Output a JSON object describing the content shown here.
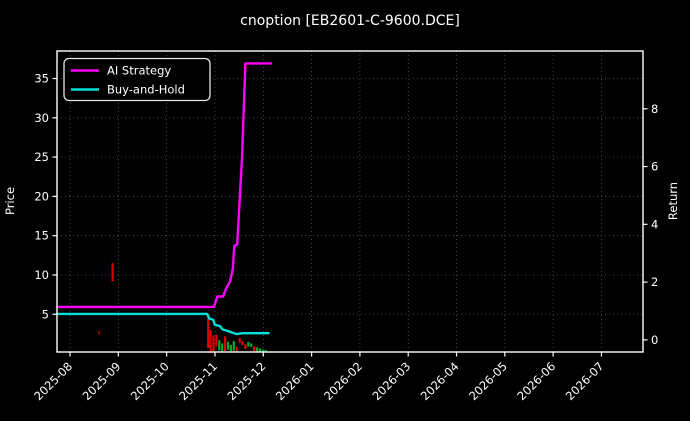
{
  "title": "cnoption [EB2601-C-9600.DCE]",
  "legend": {
    "items": [
      {
        "label": "AI Strategy",
        "color": "#ff00ff"
      },
      {
        "label": "Buy-and-Hold",
        "color": "#00e0da"
      }
    ]
  },
  "colors": {
    "background": "#000000",
    "foreground": "#ffffff",
    "grid": "#555555",
    "ai_strategy": "#ff00ff",
    "buy_and_hold": "#00e0da",
    "candle_up": "#00a82d",
    "candle_down": "#dd0000"
  },
  "chart_data": {
    "type": "line+candlestick",
    "title": "cnoption [EB2601-C-9600.DCE]",
    "x_axis": {
      "unit": "months_from_2025-08",
      "range": [
        -0.27,
        11.86
      ],
      "tick_labels": [
        "2025-08",
        "2025-09",
        "2025-10",
        "2025-11",
        "2025-12",
        "2026-01",
        "2026-02",
        "2026-03",
        "2026-04",
        "2026-05",
        "2026-06",
        "2026-07"
      ],
      "tick_positions": [
        0,
        1,
        2,
        3,
        4,
        5,
        6,
        7,
        8,
        9,
        10,
        11
      ],
      "tick_rotation_deg": 45
    },
    "left_axis": {
      "label": "Price",
      "ticks": [
        5,
        10,
        15,
        20,
        25,
        30,
        35
      ],
      "range": [
        0.2,
        38.5
      ]
    },
    "right_axis": {
      "label": "Return",
      "ticks": [
        0,
        2,
        4,
        6,
        8
      ],
      "range": [
        -0.42,
        10.0
      ]
    },
    "grid": true,
    "legend_position": "upper-left",
    "series": [
      {
        "name": "AI Strategy",
        "axis": "right",
        "color": "#ff00ff",
        "points": [
          [
            -0.27,
            1.14
          ],
          [
            2.98,
            1.14
          ],
          [
            3.05,
            1.5
          ],
          [
            3.17,
            1.5
          ],
          [
            3.23,
            1.78
          ],
          [
            3.31,
            2.0
          ],
          [
            3.37,
            2.45
          ],
          [
            3.4,
            3.25
          ],
          [
            3.46,
            3.3
          ],
          [
            3.56,
            6.3
          ],
          [
            3.63,
            9.57
          ],
          [
            4.16,
            9.57
          ]
        ]
      },
      {
        "name": "Buy-and-Hold",
        "axis": "right",
        "color": "#00e0da",
        "points": [
          [
            -0.27,
            0.9
          ],
          [
            2.84,
            0.9
          ],
          [
            2.88,
            0.74
          ],
          [
            2.96,
            0.7
          ],
          [
            3.0,
            0.52
          ],
          [
            3.1,
            0.48
          ],
          [
            3.16,
            0.36
          ],
          [
            3.24,
            0.32
          ],
          [
            3.33,
            0.27
          ],
          [
            3.45,
            0.2
          ],
          [
            3.58,
            0.23
          ],
          [
            4.11,
            0.23
          ]
        ]
      }
    ],
    "candles": [
      {
        "x": 0.6,
        "high": 2.9,
        "low": 2.4,
        "color": "#7a0000"
      },
      {
        "x": 0.88,
        "high": 11.5,
        "low": 9.2,
        "color": "#dd0000"
      },
      {
        "x": 2.86,
        "high": 4.5,
        "low": 0.7,
        "color": "#dd0000"
      },
      {
        "x": 2.91,
        "high": 3.0,
        "low": 0.1,
        "color": "#dd0000"
      },
      {
        "x": 2.97,
        "high": 2.3,
        "low": 0.1,
        "color": "#dd0000"
      },
      {
        "x": 3.03,
        "high": 2.4,
        "low": 0.9,
        "color": "#dd0000"
      },
      {
        "x": 3.09,
        "high": 1.7,
        "low": 0.4,
        "color": "#00a82d"
      },
      {
        "x": 3.15,
        "high": 1.3,
        "low": 0.3,
        "color": "#00a82d"
      },
      {
        "x": 3.21,
        "high": 2.2,
        "low": 0.3,
        "color": "#dd0000"
      },
      {
        "x": 3.27,
        "high": 1.5,
        "low": 0.5,
        "color": "#00a82d"
      },
      {
        "x": 3.33,
        "high": 1.1,
        "low": 0.3,
        "color": "#00a82d"
      },
      {
        "x": 3.39,
        "high": 1.6,
        "low": 0.35,
        "color": "#00a82d"
      },
      {
        "x": 3.45,
        "high": 0.9,
        "low": 0.25,
        "color": "#dd0000"
      },
      {
        "x": 3.51,
        "high": 1.95,
        "low": 1.3,
        "color": "#dd0000"
      },
      {
        "x": 3.57,
        "high": 1.6,
        "low": 1.1,
        "color": "#dd0000"
      },
      {
        "x": 3.63,
        "high": 1.2,
        "low": 0.6,
        "color": "#dd0000"
      },
      {
        "x": 3.69,
        "high": 1.5,
        "low": 0.9,
        "color": "#00a82d"
      },
      {
        "x": 3.75,
        "high": 1.3,
        "low": 0.85,
        "color": "#00a82d"
      },
      {
        "x": 3.81,
        "high": 0.9,
        "low": 0.3,
        "color": "#dd0000"
      },
      {
        "x": 3.87,
        "high": 0.8,
        "low": 0.25,
        "color": "#00a82d"
      },
      {
        "x": 3.93,
        "high": 0.65,
        "low": 0.2,
        "color": "#00a82d"
      },
      {
        "x": 3.99,
        "high": 0.5,
        "low": 0.15,
        "color": "#00a82d"
      },
      {
        "x": 4.05,
        "high": 0.45,
        "low": 0.12,
        "color": "#00a82d"
      }
    ]
  }
}
